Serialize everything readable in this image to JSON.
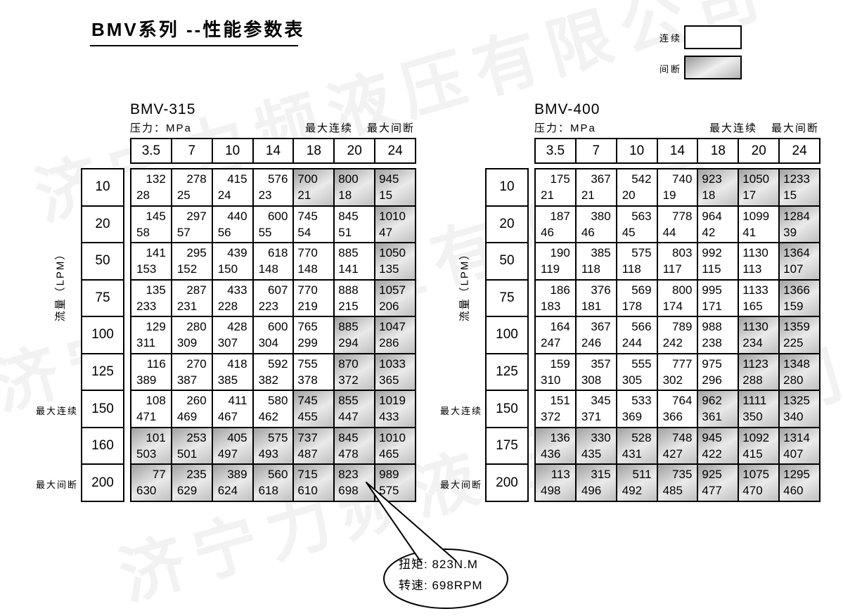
{
  "page_title": "BMV系列 --性能参数表",
  "watermark_text": "济宁力频液压有限公司",
  "legend": {
    "continuous_label": "连续",
    "intermittent_label": "间断"
  },
  "colors": {
    "border": "#000000",
    "intermittent_fill_dark": "#a2a2a2",
    "intermittent_fill_light": "#eaeaea"
  },
  "callout": {
    "torque_line": "扭矩: 823N.M",
    "speed_line": "转速: 698RPM"
  },
  "tables": [
    {
      "model": "BMV-315",
      "pressure_label": "压力：MPa",
      "max_cont_label": "最大连续",
      "max_int_label": "最大间断",
      "flow_axis_label": "流量（LPM）",
      "pressures": [
        "3.5",
        "7",
        "10",
        "14",
        "18",
        "20",
        "24"
      ],
      "rows": [
        {
          "flow": "10",
          "cells": [
            [
              "132",
              "28",
              0
            ],
            [
              "278",
              "25",
              0
            ],
            [
              "415",
              "24",
              0
            ],
            [
              "576",
              "23",
              0
            ],
            [
              "700",
              "21",
              1
            ],
            [
              "800",
              "18",
              1
            ],
            [
              "945",
              "15",
              1
            ]
          ]
        },
        {
          "flow": "20",
          "cells": [
            [
              "145",
              "58",
              0
            ],
            [
              "297",
              "57",
              0
            ],
            [
              "440",
              "56",
              0
            ],
            [
              "600",
              "55",
              0
            ],
            [
              "745",
              "54",
              0
            ],
            [
              "845",
              "51",
              0
            ],
            [
              "1010",
              "47",
              1
            ]
          ]
        },
        {
          "flow": "50",
          "cells": [
            [
              "141",
              "153",
              0
            ],
            [
              "295",
              "152",
              0
            ],
            [
              "439",
              "150",
              0
            ],
            [
              "618",
              "148",
              0
            ],
            [
              "770",
              "148",
              0
            ],
            [
              "885",
              "141",
              0
            ],
            [
              "1050",
              "135",
              1
            ]
          ]
        },
        {
          "flow": "75",
          "cells": [
            [
              "135",
              "233",
              0
            ],
            [
              "287",
              "231",
              0
            ],
            [
              "433",
              "228",
              0
            ],
            [
              "607",
              "223",
              0
            ],
            [
              "770",
              "219",
              0
            ],
            [
              "888",
              "215",
              0
            ],
            [
              "1057",
              "206",
              1
            ]
          ]
        },
        {
          "flow": "100",
          "cells": [
            [
              "129",
              "311",
              0
            ],
            [
              "280",
              "309",
              0
            ],
            [
              "428",
              "307",
              0
            ],
            [
              "600",
              "304",
              0
            ],
            [
              "765",
              "299",
              0
            ],
            [
              "885",
              "294",
              1
            ],
            [
              "1047",
              "286",
              1
            ]
          ]
        },
        {
          "flow": "125",
          "cells": [
            [
              "116",
              "389",
              0
            ],
            [
              "270",
              "387",
              0
            ],
            [
              "418",
              "385",
              0
            ],
            [
              "592",
              "382",
              0
            ],
            [
              "755",
              "378",
              0
            ],
            [
              "870",
              "372",
              1
            ],
            [
              "1033",
              "365",
              1
            ]
          ]
        },
        {
          "flow": "150",
          "cells": [
            [
              "108",
              "471",
              0
            ],
            [
              "260",
              "469",
              0
            ],
            [
              "411",
              "467",
              0
            ],
            [
              "580",
              "462",
              0
            ],
            [
              "745",
              "455",
              1
            ],
            [
              "855",
              "447",
              1
            ],
            [
              "1019",
              "433",
              1
            ]
          ]
        },
        {
          "flow": "160",
          "cells": [
            [
              "101",
              "503",
              1
            ],
            [
              "253",
              "501",
              1
            ],
            [
              "405",
              "497",
              1
            ],
            [
              "575",
              "493",
              1
            ],
            [
              "737",
              "487",
              1
            ],
            [
              "845",
              "478",
              1
            ],
            [
              "1010",
              "465",
              1
            ]
          ]
        },
        {
          "flow": "200",
          "cells": [
            [
              "77",
              "630",
              1
            ],
            [
              "235",
              "629",
              1
            ],
            [
              "389",
              "624",
              1
            ],
            [
              "560",
              "618",
              1
            ],
            [
              "715",
              "610",
              1
            ],
            [
              "823",
              "698",
              1
            ],
            [
              "989",
              "575",
              1
            ]
          ]
        }
      ]
    },
    {
      "model": "BMV-400",
      "pressure_label": "压力：MPa",
      "max_cont_label": "最大连续",
      "max_int_label": "最大间断",
      "flow_axis_label": "流量（LPM）",
      "pressures": [
        "3.5",
        "7",
        "10",
        "14",
        "18",
        "20",
        "24"
      ],
      "rows": [
        {
          "flow": "10",
          "cells": [
            [
              "175",
              "21",
              0
            ],
            [
              "367",
              "21",
              0
            ],
            [
              "542",
              "20",
              0
            ],
            [
              "740",
              "19",
              0
            ],
            [
              "923",
              "18",
              1
            ],
            [
              "1050",
              "17",
              1
            ],
            [
              "1233",
              "15",
              1
            ]
          ]
        },
        {
          "flow": "20",
          "cells": [
            [
              "187",
              "46",
              0
            ],
            [
              "380",
              "46",
              0
            ],
            [
              "563",
              "45",
              0
            ],
            [
              "778",
              "44",
              0
            ],
            [
              "964",
              "42",
              0
            ],
            [
              "1099",
              "41",
              0
            ],
            [
              "1284",
              "39",
              1
            ]
          ]
        },
        {
          "flow": "50",
          "cells": [
            [
              "190",
              "119",
              0
            ],
            [
              "385",
              "118",
              0
            ],
            [
              "575",
              "118",
              0
            ],
            [
              "803",
              "117",
              0
            ],
            [
              "992",
              "115",
              0
            ],
            [
              "1130",
              "113",
              0
            ],
            [
              "1364",
              "107",
              1
            ]
          ]
        },
        {
          "flow": "75",
          "cells": [
            [
              "186",
              "183",
              0
            ],
            [
              "376",
              "181",
              0
            ],
            [
              "569",
              "178",
              0
            ],
            [
              "800",
              "174",
              0
            ],
            [
              "995",
              "171",
              0
            ],
            [
              "1133",
              "165",
              0
            ],
            [
              "1366",
              "159",
              1
            ]
          ]
        },
        {
          "flow": "100",
          "cells": [
            [
              "164",
              "247",
              0
            ],
            [
              "367",
              "246",
              0
            ],
            [
              "566",
              "244",
              0
            ],
            [
              "789",
              "242",
              0
            ],
            [
              "988",
              "238",
              0
            ],
            [
              "1130",
              "234",
              1
            ],
            [
              "1359",
              "225",
              1
            ]
          ]
        },
        {
          "flow": "125",
          "cells": [
            [
              "159",
              "310",
              0
            ],
            [
              "357",
              "308",
              0
            ],
            [
              "555",
              "305",
              0
            ],
            [
              "777",
              "302",
              0
            ],
            [
              "975",
              "296",
              0
            ],
            [
              "1123",
              "288",
              1
            ],
            [
              "1348",
              "280",
              1
            ]
          ]
        },
        {
          "flow": "150",
          "cells": [
            [
              "151",
              "372",
              0
            ],
            [
              "345",
              "371",
              0
            ],
            [
              "533",
              "369",
              0
            ],
            [
              "764",
              "366",
              0
            ],
            [
              "962",
              "361",
              1
            ],
            [
              "1111",
              "350",
              1
            ],
            [
              "1325",
              "340",
              1
            ]
          ]
        },
        {
          "flow": "175",
          "cells": [
            [
              "136",
              "436",
              1
            ],
            [
              "330",
              "435",
              1
            ],
            [
              "528",
              "431",
              1
            ],
            [
              "748",
              "427",
              1
            ],
            [
              "945",
              "422",
              1
            ],
            [
              "1092",
              "415",
              1
            ],
            [
              "1314",
              "407",
              1
            ]
          ]
        },
        {
          "flow": "200",
          "cells": [
            [
              "113",
              "498",
              1
            ],
            [
              "315",
              "496",
              1
            ],
            [
              "511",
              "492",
              1
            ],
            [
              "735",
              "485",
              1
            ],
            [
              "925",
              "477",
              1
            ],
            [
              "1075",
              "470",
              1
            ],
            [
              "1295",
              "460",
              1
            ]
          ]
        }
      ]
    }
  ]
}
